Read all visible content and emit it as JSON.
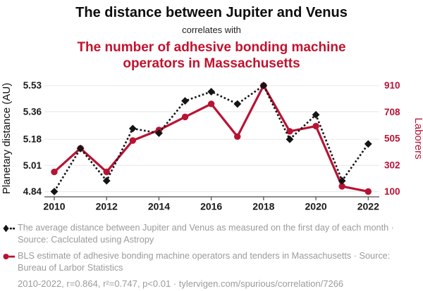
{
  "title": {
    "line1": "The distance between Jupiter and Venus",
    "connector": "correlates with",
    "line2": "The number of adhesive bonding machine operators in Massachusetts"
  },
  "colors": {
    "series_black": "#141414",
    "series_red": "#b81334",
    "title_red": "#c1122e",
    "legend_text": "#9b9b9b",
    "grid": "#ebebeb",
    "axis_line": "#4a4a4a",
    "tick_text_black": "#1a1a1a"
  },
  "chart_data": {
    "type": "line",
    "x": [
      2010,
      2011,
      2012,
      2013,
      2014,
      2015,
      2016,
      2017,
      2018,
      2019,
      2020,
      2021,
      2022
    ],
    "series": [
      {
        "name": "Jupiter-Venus distance",
        "axis": "left",
        "marker": "diamond",
        "line": "dashed",
        "color": "#141414",
        "values": [
          4.84,
          5.12,
          4.91,
          5.25,
          5.22,
          5.43,
          5.49,
          5.41,
          5.53,
          5.18,
          5.34,
          4.91,
          5.15
        ]
      },
      {
        "name": "Adhesive bonding machine operators in Massachusetts",
        "axis": "right",
        "marker": "circle",
        "line": "solid",
        "color": "#b81334",
        "values": [
          250,
          430,
          250,
          490,
          570,
          670,
          770,
          520,
          910,
          560,
          600,
          140,
          100
        ]
      }
    ],
    "left_axis": {
      "label": "Planetary distance (AU)",
      "ticks": [
        4.84,
        5.01,
        5.18,
        5.36,
        5.53
      ],
      "min": 4.84,
      "max": 5.53
    },
    "right_axis": {
      "label": "Laborers",
      "ticks": [
        100,
        302,
        505,
        708,
        910
      ],
      "min": 100,
      "max": 910
    },
    "x_axis": {
      "ticks": [
        2010,
        2012,
        2014,
        2016,
        2018,
        2020,
        2022
      ]
    },
    "grid": "horizontal",
    "legend_position": "bottom"
  },
  "legend": {
    "items": [
      {
        "marker": "diamond-dashed",
        "label": "The average distance between Jupiter and Venus as measured on the first day of each month · Source: Caclculated using Astropy"
      },
      {
        "marker": "circle-solid",
        "label": "BLS estimate of adhesive bonding machine operators and tenders in Massachusetts · Source: Bureau of Larbor Statistics"
      }
    ]
  },
  "footer": {
    "text": "2010-2022, r=0.864, r²=0.747, p<0.01 · tylervigen.com/spurious/correlation/7266"
  }
}
